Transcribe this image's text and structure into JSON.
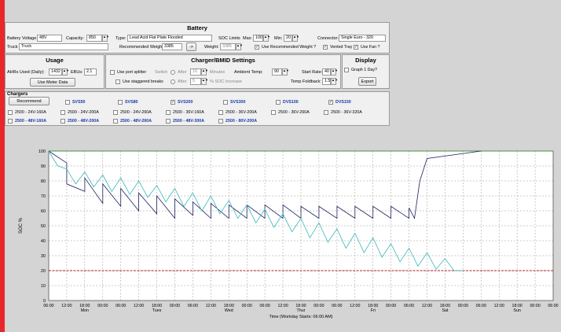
{
  "battery": {
    "title": "Battery",
    "voltage_label": "Battery Voltage",
    "voltage": "48V",
    "capacity_label": "Capacity:",
    "capacity": "850",
    "truck_label": "Truck",
    "truck": "Truck",
    "type_label": "Type:",
    "type": "Lead Acid Flat Plate Flooded",
    "soc_limits_label": "SOC Limits",
    "max_label": "Max:",
    "max": "100",
    "min_label": "Min:",
    "min": "20",
    "connector_label": "Connector:",
    "connector": "Single Euro - 320",
    "rec_weight_label": "Recommended Weight:",
    "rec_weight": "3385",
    "rec_weight_btn": "->",
    "weight_label": "Weight:",
    "weight": "3385",
    "use_rec_weight": "Use Recommended Weight ?",
    "vented_tray": "Vented Tray",
    "use_fan": "Use Fan ?"
  },
  "usage": {
    "title": "Usage",
    "ahrs_label": "AHRs Used (Daily):",
    "ahrs": "1432",
    "ebus_label": "EBUs:",
    "ebus": "2.1",
    "meter_btn": "Use Meter Data"
  },
  "charger_settings": {
    "title": "Charger/BMID Settings",
    "port_splitter": "Use port splitter",
    "switch_label": "Switch",
    "after1_label": "After",
    "after1": "10",
    "minutes": "Minutes",
    "staggered": "Use staggered breaks",
    "after2_label": "After",
    "after2": "5",
    "soc_increase": "% SOC Increase",
    "ambient_label": "Ambient Temp:",
    "ambient": "90",
    "start_rate_label": "Start Rate:",
    "start_rate": "40",
    "temp_foldback_label": "Temp Foldback:",
    "temp_foldback": "1.5"
  },
  "display": {
    "title": "Display",
    "graph1day": "Graph 1 Day?",
    "export_btn": "Export"
  },
  "chargers": {
    "title": "Chargers",
    "recommend_btn": "Recommend",
    "top": [
      {
        "label": "SVS50",
        "checked": false
      },
      {
        "label": "SVS80",
        "checked": false
      },
      {
        "label": "SVS200",
        "checked": true
      },
      {
        "label": "SVS300",
        "checked": false
      },
      {
        "label": "DVS100",
        "checked": false
      },
      {
        "label": "DVS150",
        "checked": true
      }
    ],
    "row2": [
      "2500 - 24V-160A",
      "2500 - 24V-200A",
      "2500 - 24V-260A",
      "2500 - 36V-160A",
      "2500 - 36V-200A",
      "2500 - 36V-260A",
      "2500 - 36V-320A"
    ],
    "row3": [
      "2500 - 48V-160A",
      "2500 - 48V-200A",
      "2500 - 48V-260A",
      "2500 - 48V-300A",
      "2500 - 80V-200A"
    ]
  },
  "chart_data": {
    "type": "line",
    "ylabel": "SOC %",
    "xlabel": "Time (Workday Starts: 06:00 AM)",
    "ylim": [
      0,
      100
    ],
    "yticks": [
      0,
      10,
      20,
      30,
      40,
      50,
      60,
      70,
      80,
      90,
      100
    ],
    "xticks": [
      "06:00",
      "12:00",
      "18:00",
      "00:00",
      "06:00",
      "12:00",
      "18:00",
      "00:00",
      "06:00",
      "12:00",
      "18:00",
      "00:00",
      "06:00",
      "12:00",
      "18:00",
      "00:00",
      "06:00",
      "12:00",
      "18:00",
      "00:00",
      "06:00",
      "12:00",
      "18:00",
      "00:00",
      "06:00",
      "12:00",
      "18:00",
      "00:00",
      "06:00"
    ],
    "days": [
      "Mon",
      "Tues",
      "Wed",
      "Thur",
      "Fri",
      "Sat",
      "Sun"
    ],
    "min_soc_line": 20,
    "max_soc_line": 100,
    "series": [
      {
        "color": "#1f1f5f",
        "x": [
          0,
          1,
          1,
          2,
          2,
          3,
          3,
          4,
          4,
          5,
          5,
          6,
          6,
          7,
          7,
          8,
          8,
          9,
          9,
          10,
          10,
          11,
          11,
          12,
          12,
          13,
          13,
          14,
          14,
          15,
          15,
          16,
          16,
          17,
          17,
          18,
          18,
          19,
          19,
          20,
          20,
          20.3,
          20.6,
          21,
          24
        ],
        "y": [
          100,
          92,
          78,
          73,
          82,
          65,
          78,
          63,
          75,
          60,
          72,
          58,
          70,
          55,
          68,
          57,
          66,
          55,
          65,
          55,
          64,
          55,
          64,
          55,
          64,
          55,
          64,
          55,
          63,
          55,
          63,
          55,
          63,
          55,
          63,
          55,
          63,
          55,
          63,
          55,
          62,
          55,
          80,
          95,
          100
        ]
      },
      {
        "color": "#3ab8b8",
        "x": [
          0,
          0.5,
          1,
          1.5,
          2,
          2.5,
          3,
          3.5,
          4,
          4.5,
          5,
          5.5,
          6,
          6.5,
          7,
          7.5,
          8,
          8.5,
          9,
          9.5,
          10,
          10.5,
          11,
          11.5,
          12,
          12.5,
          13,
          13.5,
          14,
          14.5,
          15,
          15.5,
          16,
          16.5,
          17,
          17.5,
          18,
          18.5,
          19,
          19.5,
          20,
          20.5,
          21,
          21.5,
          22,
          22.5,
          23
        ],
        "y": [
          100,
          90,
          88,
          78,
          86,
          76,
          84,
          73,
          82,
          71,
          80,
          69,
          77,
          66,
          75,
          63,
          72,
          60,
          70,
          58,
          67,
          55,
          64,
          52,
          61,
          49,
          58,
          46,
          55,
          42,
          52,
          39,
          48,
          35,
          45,
          32,
          42,
          29,
          38,
          26,
          35,
          23,
          32,
          21,
          28,
          20,
          20
        ]
      }
    ]
  }
}
